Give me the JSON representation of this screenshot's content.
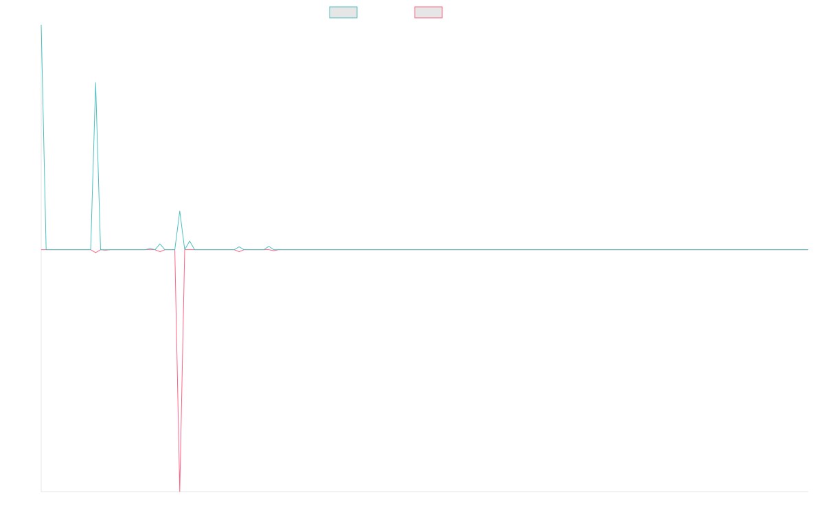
{
  "chart_data": {
    "type": "line",
    "title": "",
    "xlabel": "",
    "ylabel": "",
    "x": [
      0,
      1,
      2,
      3,
      4,
      5,
      6,
      7,
      8,
      9,
      10,
      11,
      12,
      13,
      14,
      15,
      16,
      17,
      18,
      19,
      20,
      21,
      22,
      23,
      24,
      25,
      26,
      27,
      28,
      29,
      30,
      31,
      32,
      33,
      34,
      35,
      36,
      37,
      38,
      39,
      40,
      41,
      42,
      43,
      44,
      45,
      46,
      47,
      48,
      49,
      50,
      51,
      52,
      53,
      54,
      55,
      56,
      57,
      58,
      59,
      60,
      61,
      62,
      63,
      64,
      65,
      66,
      67,
      68,
      69,
      70,
      71,
      72,
      73,
      74,
      75,
      76,
      77,
      78,
      79,
      80,
      81,
      82,
      83,
      84,
      85,
      86,
      87,
      88,
      89,
      90,
      91,
      92,
      93,
      94,
      95,
      96,
      97,
      98,
      99,
      100,
      101,
      102,
      103,
      104,
      105,
      106,
      107,
      108,
      109,
      110,
      111,
      112,
      113,
      114,
      115,
      116,
      117,
      118,
      119,
      120,
      121,
      122,
      123,
      124,
      125,
      126,
      127,
      128,
      129,
      130,
      131,
      132,
      133,
      134,
      135,
      136,
      137,
      138,
      139,
      140,
      141,
      142,
      143,
      144,
      145,
      146,
      147,
      148,
      149,
      150,
      151,
      152,
      153,
      154,
      155
    ],
    "ylim": [
      -500,
      465
    ],
    "legend_position": "top-center",
    "grid": false,
    "series": [
      {
        "name": "",
        "color": "#4bc0c0",
        "fill": "#e6e6e6",
        "values": [
          465,
          0,
          0,
          0,
          0,
          0,
          0,
          0,
          0,
          0,
          0,
          345,
          0,
          0,
          0,
          0,
          0,
          0,
          0,
          0,
          0,
          0,
          3,
          0,
          12,
          0,
          0,
          0,
          80,
          0,
          18,
          0,
          0,
          0,
          0,
          0,
          0,
          0,
          0,
          0,
          6,
          0,
          0,
          0,
          0,
          0,
          7,
          0,
          0,
          0,
          0,
          0,
          0,
          0,
          0,
          0,
          0,
          0,
          0,
          0,
          0,
          0,
          0,
          0,
          0,
          0,
          0,
          0,
          0,
          0,
          0,
          0,
          0,
          0,
          0,
          0,
          0,
          0,
          0,
          0,
          0,
          0,
          0,
          0,
          0,
          0,
          0,
          0,
          0,
          0,
          0,
          0,
          0,
          0,
          0,
          0,
          0,
          0,
          0,
          0,
          0,
          0,
          0,
          0,
          0,
          0,
          0,
          0,
          0,
          0,
          0,
          0,
          0,
          0,
          0,
          0,
          0,
          0,
          0,
          0,
          0,
          0,
          0,
          0,
          0,
          0,
          0,
          0,
          0,
          0,
          0,
          0,
          0,
          0,
          0,
          0,
          0,
          0,
          0,
          0,
          0,
          0,
          0,
          0,
          0,
          0,
          0,
          0,
          0,
          0,
          0,
          0,
          0,
          0,
          0,
          0
        ]
      },
      {
        "name": "",
        "color": "#ff6384",
        "fill": "#e6e6e6",
        "values": [
          0,
          0,
          0,
          0,
          0,
          0,
          0,
          0,
          0,
          0,
          0,
          -6,
          0,
          -1,
          0,
          0,
          0,
          0,
          0,
          0,
          0,
          0,
          0,
          0,
          -4,
          0,
          0,
          0,
          -500,
          0,
          0,
          0,
          0,
          0,
          0,
          0,
          0,
          0,
          0,
          0,
          -4,
          0,
          0,
          0,
          0,
          0,
          0,
          -2,
          0,
          0,
          0,
          0,
          0,
          0,
          0,
          0,
          0,
          0,
          0,
          0,
          0,
          0,
          0,
          0,
          0,
          0,
          0,
          0,
          0,
          0,
          0,
          0,
          0,
          0,
          0,
          0,
          0,
          0,
          0,
          0,
          0,
          0,
          0,
          0,
          0,
          0,
          0,
          0,
          0,
          0,
          0,
          0,
          0,
          0,
          0,
          0,
          0,
          0,
          0,
          0,
          0,
          0,
          0,
          0,
          0,
          0,
          0,
          0,
          0,
          0,
          0,
          0,
          0,
          0,
          0,
          0,
          0,
          0,
          0,
          0,
          0,
          0,
          0,
          0,
          0,
          0,
          0,
          0,
          0,
          0,
          0,
          0,
          0,
          0,
          0,
          0,
          0,
          0,
          0,
          0,
          0,
          0,
          0,
          0,
          0,
          0,
          0,
          0,
          0,
          0,
          0,
          0,
          0,
          0,
          0,
          0
        ]
      }
    ]
  }
}
